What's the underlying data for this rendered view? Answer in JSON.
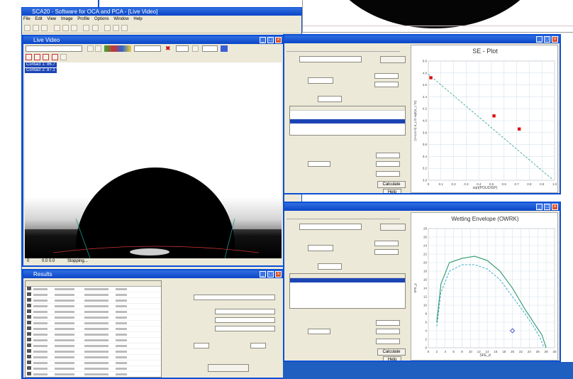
{
  "app": {
    "title": "SCA20 - Software for OCA and PCA - [Live Video]",
    "menu_items": [
      "File",
      "Edit",
      "View",
      "Image",
      "Profile",
      "Options",
      "Window",
      "Help"
    ]
  },
  "live_video": {
    "title": "Live Video",
    "readout_1": "Contact 1: 86.7",
    "readout_2": "Contact 2: 87.1",
    "status_left": "0",
    "status_mid": "0.0    0.0",
    "status_right": "Stopping..."
  },
  "results": {
    "title": "Results"
  },
  "se_panel": {
    "title": "SE - Plot",
    "x_axis_label": "sqrt(POL/DISP)",
    "y_axis_label": "(1+cos θ)·σ_L/2·sqrt(σ_L^D)",
    "x_ticks": [
      "0",
      "0.1",
      "0.2",
      "0.3",
      "0.4",
      "0.5",
      "0.6",
      "0.7",
      "0.8",
      "0.9",
      "1.0"
    ],
    "y_ticks": [
      "5.0",
      "4.8",
      "4.6",
      "4.4",
      "4.2",
      "4.0",
      "3.8",
      "3.6",
      "3.4",
      "3.2",
      "3.0"
    ],
    "calc_button": "Calculate",
    "help_button": "Help"
  },
  "wetting_panel": {
    "title": "Wetting Envelope (OWRK)",
    "x_axis_label": "SFE_d",
    "y_axis_label": "SFE_p",
    "x_ticks": [
      "0",
      "2",
      "4",
      "6",
      "8",
      "10",
      "12",
      "14",
      "16",
      "18",
      "20",
      "22",
      "24",
      "26",
      "28",
      "30"
    ],
    "y_ticks": [
      "0",
      "2",
      "4",
      "6",
      "8",
      "10",
      "12",
      "14",
      "16",
      "18",
      "20",
      "22",
      "24",
      "26",
      "28"
    ],
    "calc_button": "Calculate",
    "help_button": "Help"
  },
  "chart_data": [
    {
      "type": "scatter",
      "title": "SE - Plot",
      "xlabel": "sqrt(POL/DISP)",
      "ylabel": "",
      "xlim": [
        0.0,
        1.0
      ],
      "ylim": [
        3.0,
        5.0
      ],
      "series": [
        {
          "x": [
            0.02,
            0.52,
            0.72
          ],
          "y": [
            4.72,
            4.08,
            3.86
          ]
        },
        {
          "x": [
            0.0,
            0.98
          ],
          "y": [
            4.78,
            3.02
          ]
        }
      ],
      "grid": true
    },
    {
      "type": "line",
      "title": "Wetting Envelope (OWRK)",
      "xlabel": "SFE_d",
      "ylabel": "SFE_p",
      "xlim": [
        0,
        30
      ],
      "ylim": [
        0,
        28
      ],
      "series": [
        {
          "x": [
            2,
            3,
            5,
            8,
            11,
            14,
            17,
            20,
            23,
            25,
            27,
            28
          ],
          "y": [
            6,
            15,
            20,
            21,
            21.5,
            20.5,
            18,
            14,
            9,
            6,
            3,
            0
          ]
        },
        {
          "x": [
            2,
            3,
            5,
            8,
            11,
            14,
            17,
            20,
            23,
            25,
            26.5,
            27.5
          ],
          "y": [
            5,
            13,
            18,
            19.5,
            19.5,
            18.5,
            16,
            12,
            8,
            5,
            2.5,
            0
          ]
        },
        {
          "x": [
            20
          ],
          "y": [
            4
          ]
        }
      ],
      "grid": true
    }
  ]
}
